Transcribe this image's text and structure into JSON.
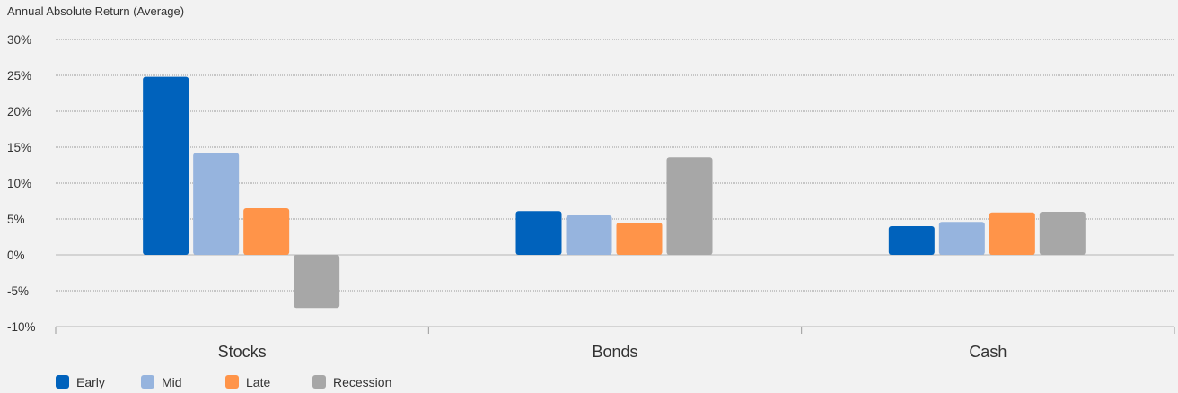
{
  "chart_data": {
    "type": "bar",
    "ylabel": "Annual Absolute Return (Average)",
    "categories": [
      "Stocks",
      "Bonds",
      "Cash"
    ],
    "series": [
      {
        "name": "Early",
        "color": "#0062bc",
        "values": [
          24.8,
          6.1,
          4.0
        ]
      },
      {
        "name": "Mid",
        "color": "#96b4de",
        "values": [
          14.2,
          5.5,
          4.6
        ]
      },
      {
        "name": "Late",
        "color": "#ff9449",
        "values": [
          6.5,
          4.5,
          5.9
        ]
      },
      {
        "name": "Recession",
        "color": "#a7a7a7",
        "values": [
          -7.4,
          13.6,
          6.0
        ]
      }
    ],
    "ylim": [
      -10,
      30
    ],
    "yticks": [
      30,
      25,
      20,
      15,
      10,
      5,
      0,
      -5,
      -10
    ],
    "ytick_labels": [
      "30%",
      "25%",
      "20%",
      "15%",
      "10%",
      "5%",
      "0%",
      "-5%",
      "-10%"
    ],
    "grid": true,
    "legend_position": "bottom-left"
  }
}
